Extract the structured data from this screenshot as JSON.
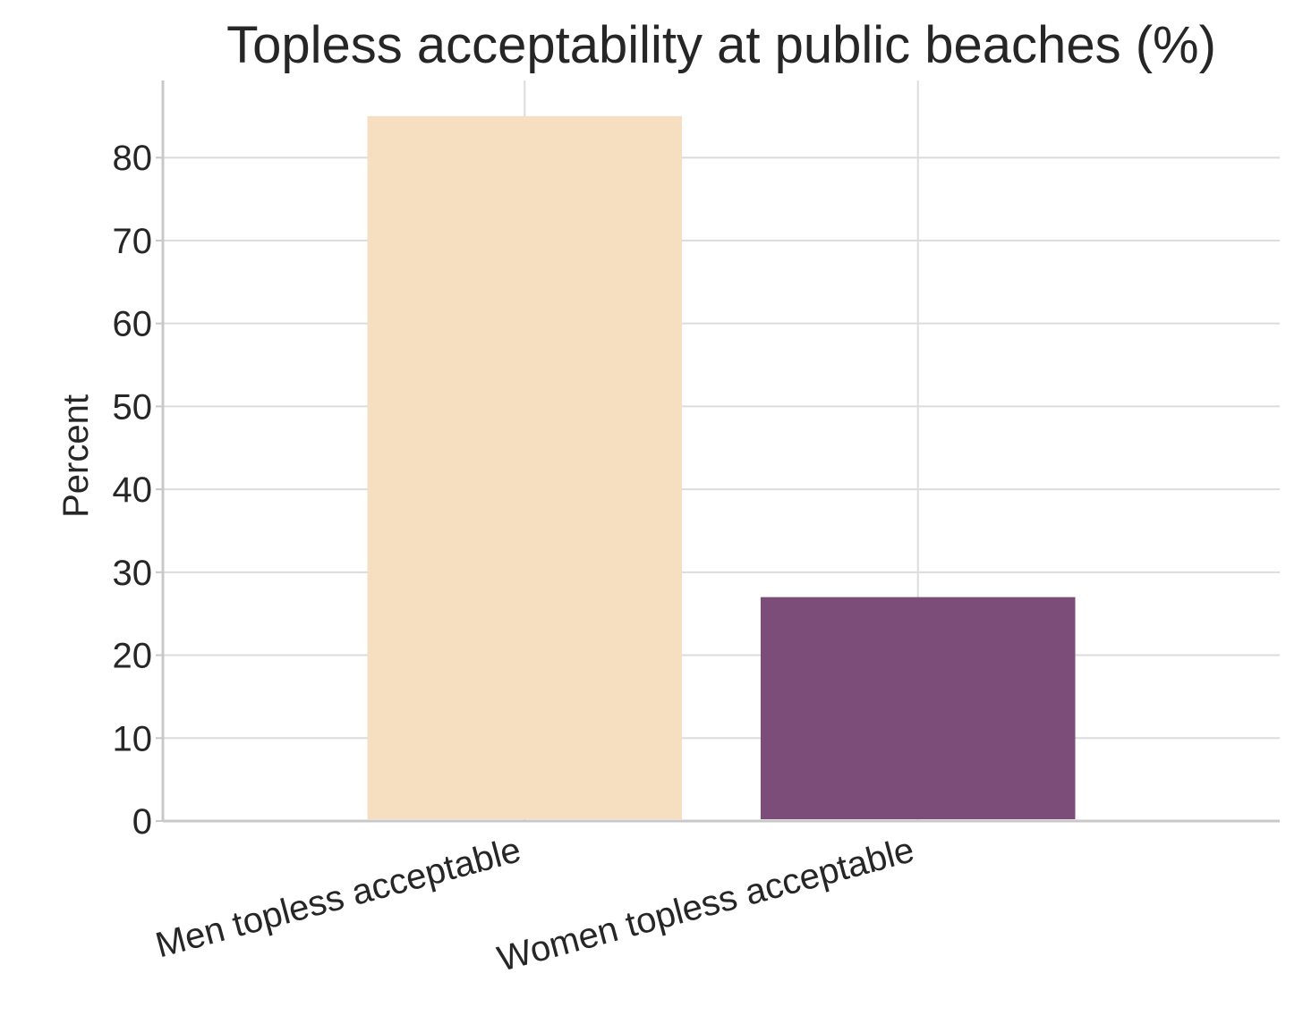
{
  "chart_data": {
    "type": "bar",
    "title": "Topless acceptability at public beaches (%)",
    "xlabel": "",
    "ylabel": "Percent",
    "categories": [
      "Men topless acceptable",
      "Women topless acceptable"
    ],
    "values": [
      85,
      27
    ],
    "colors": [
      "#f5dfc0",
      "#7b4d78"
    ],
    "ylim": [
      0,
      89.3
    ],
    "yticks": [
      0,
      10,
      20,
      30,
      40,
      50,
      60,
      70,
      80
    ],
    "grid": true,
    "legend": "none"
  }
}
